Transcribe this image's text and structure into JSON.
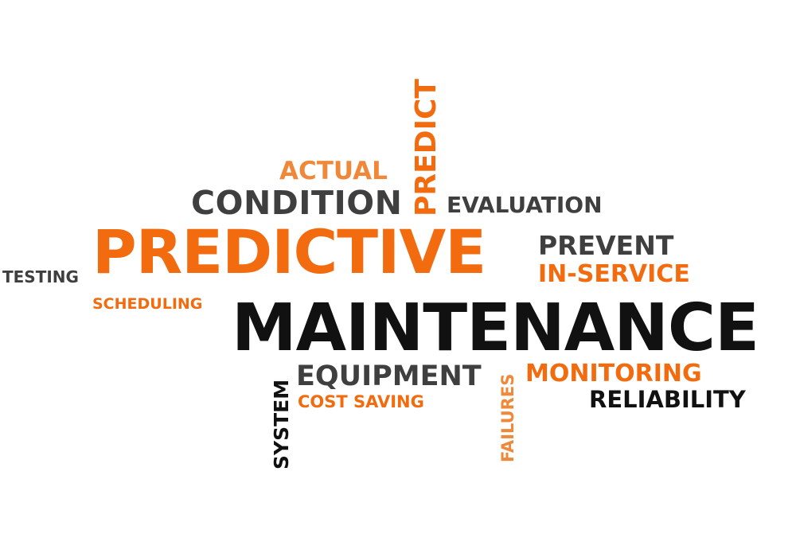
{
  "colors": {
    "background": "#ffffff",
    "orange": "#f26b0f",
    "light_orange": "#f0883a",
    "dark_gray": "#3f3f3f",
    "black": "#111111"
  },
  "words": {
    "predict": "PREDICT",
    "actual": "ACTUAL",
    "condition": "CONDITION",
    "evaluation": "EVALUATION",
    "predictive": "PREDICTIVE",
    "prevent": "PREVENT",
    "in_service": "IN-SERVICE",
    "testing": "TESTING",
    "scheduling": "SCHEDULING",
    "maintenance": "MAINTENANCE",
    "system": "SYSTEM",
    "equipment": "EQUIPMENT",
    "cost_saving": "COST SAVING",
    "failures": "FAILURES",
    "monitoring": "MONITORING",
    "reliability": "RELIABILITY"
  },
  "word_colors": {
    "predict": "orange",
    "actual": "light_orange",
    "condition": "dark_gray",
    "evaluation": "dark_gray",
    "predictive": "orange",
    "prevent": "dark_gray",
    "in_service": "orange",
    "testing": "dark_gray",
    "scheduling": "orange",
    "maintenance": "black",
    "system": "black",
    "equipment": "dark_gray",
    "cost_saving": "orange",
    "failures": "light_orange",
    "monitoring": "orange",
    "reliability": "black"
  }
}
